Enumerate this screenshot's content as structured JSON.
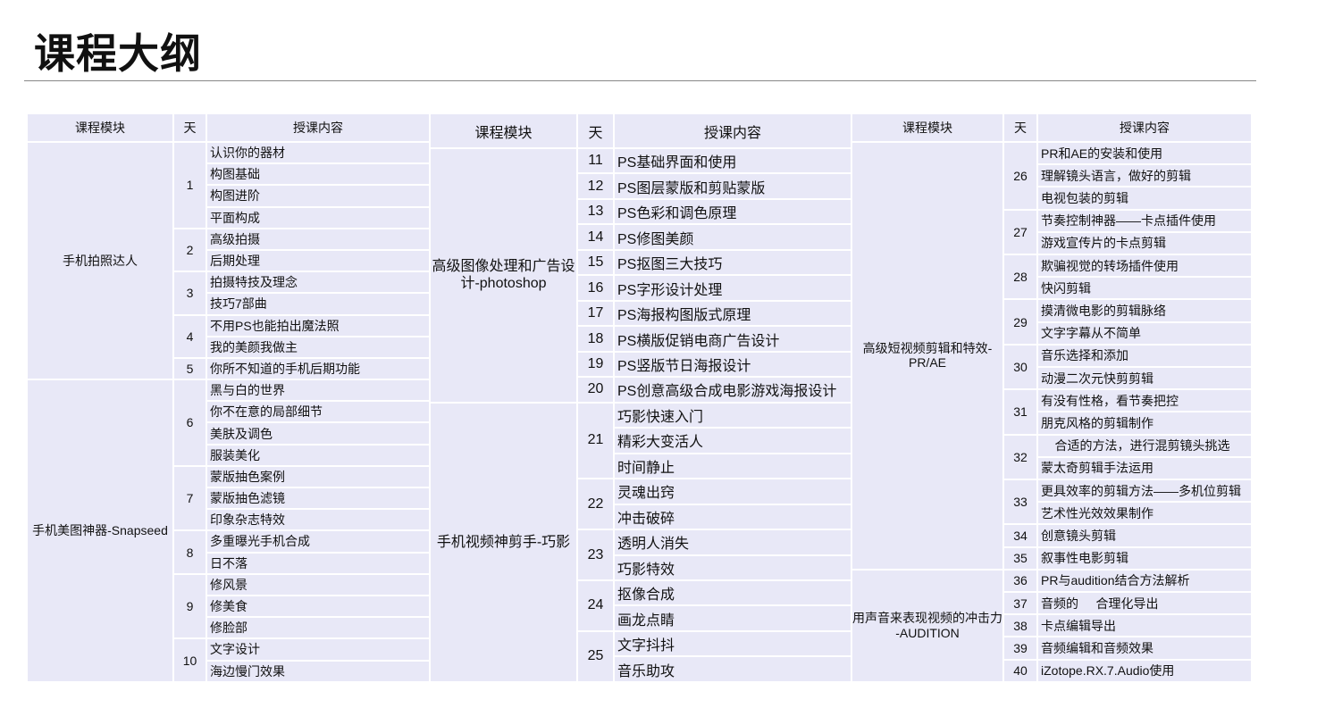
{
  "title": "课程大纲",
  "tables": [
    {
      "headers": [
        "课程模块",
        "天",
        "授课内容"
      ],
      "modules": [
        {
          "name": "手机拍照达人",
          "days": [
            {
              "day": "1",
              "items": [
                "认识你的器材",
                "构图基础",
                "构图进阶",
                "平面构成"
              ]
            },
            {
              "day": "2",
              "items": [
                "高级拍摄",
                "后期处理"
              ]
            },
            {
              "day": "3",
              "items": [
                "拍摄特技及理念",
                "技巧7部曲"
              ]
            },
            {
              "day": "4",
              "items": [
                "不用PS也能拍出魔法照",
                "我的美颜我做主"
              ]
            },
            {
              "day": "5",
              "items": [
                "你所不知道的手机后期功能"
              ]
            }
          ]
        },
        {
          "name": "手机美图神器-Snapseed",
          "days": [
            {
              "day": "6",
              "items": [
                "黑与白的世界",
                "你不在意的局部细节",
                "美肤及调色",
                "服装美化"
              ]
            },
            {
              "day": "7",
              "items": [
                "蒙版抽色案例",
                "蒙版抽色滤镜",
                "印象杂志特效"
              ]
            },
            {
              "day": "8",
              "items": [
                "多重曝光手机合成",
                "日不落"
              ]
            },
            {
              "day": "9",
              "items": [
                "修风景",
                "修美食",
                "修脸部"
              ]
            },
            {
              "day": "10",
              "items": [
                "文字设计",
                "海边慢门效果"
              ]
            }
          ]
        }
      ]
    },
    {
      "headers": [
        "课程模块",
        "天",
        "授课内容"
      ],
      "modules": [
        {
          "name": "高级图像处理和广告设计-photoshop",
          "days": [
            {
              "day": "11",
              "items": [
                "PS基础界面和使用"
              ]
            },
            {
              "day": "12",
              "items": [
                "PS图层蒙版和剪贴蒙版"
              ]
            },
            {
              "day": "13",
              "items": [
                "PS色彩和调色原理"
              ]
            },
            {
              "day": "14",
              "items": [
                "PS修图美颜"
              ]
            },
            {
              "day": "15",
              "items": [
                "PS抠图三大技巧"
              ]
            },
            {
              "day": "16",
              "items": [
                "PS字形设计处理"
              ]
            },
            {
              "day": "17",
              "items": [
                "PS海报构图版式原理"
              ]
            },
            {
              "day": "18",
              "items": [
                "PS横版促销电商广告设计"
              ]
            },
            {
              "day": "19",
              "items": [
                "PS竖版节日海报设计"
              ]
            },
            {
              "day": "20",
              "items": [
                "PS创意高级合成电影游戏海报设计"
              ]
            }
          ]
        },
        {
          "name": "手机视频神剪手-巧影",
          "days": [
            {
              "day": "21",
              "items": [
                "巧影快速入门",
                "精彩大变活人",
                "时间静止"
              ]
            },
            {
              "day": "22",
              "items": [
                "灵魂出窍",
                "冲击破碎"
              ]
            },
            {
              "day": "23",
              "items": [
                "透明人消失",
                "巧影特效"
              ]
            },
            {
              "day": "24",
              "items": [
                "抠像合成",
                "画龙点睛"
              ]
            },
            {
              "day": "25",
              "items": [
                "文字抖抖",
                "音乐助攻"
              ]
            }
          ]
        }
      ]
    },
    {
      "headers": [
        "课程模块",
        "天",
        "授课内容"
      ],
      "modules": [
        {
          "name": "高级短视频剪辑和特效-PR/AE",
          "days": [
            {
              "day": "26",
              "items": [
                "PR和AE的安装和使用",
                "理解镜头语言，做好的剪辑",
                "电视包装的剪辑"
              ]
            },
            {
              "day": "27",
              "items": [
                "节奏控制神器——卡点插件使用",
                "游戏宣传片的卡点剪辑"
              ]
            },
            {
              "day": "28",
              "items": [
                "欺骗视觉的转场插件使用",
                "快闪剪辑"
              ]
            },
            {
              "day": "29",
              "items": [
                "摸清微电影的剪辑脉络",
                "文字字幕从不简单"
              ]
            },
            {
              "day": "30",
              "items": [
                "音乐选择和添加",
                "动漫二次元快剪剪辑"
              ]
            },
            {
              "day": "31",
              "items": [
                "有没有性格，看节奏把控",
                "朋克风格的剪辑制作"
              ]
            },
            {
              "day": "32",
              "items": [
                "    合适的方法，进行混剪镜头挑选",
                "蒙太奇剪辑手法运用"
              ]
            },
            {
              "day": "33",
              "items": [
                "更具效率的剪辑方法——多机位剪辑",
                "艺术性光效效果制作"
              ]
            },
            {
              "day": "34",
              "items": [
                "创意镜头剪辑"
              ]
            },
            {
              "day": "35",
              "items": [
                "叙事性电影剪辑"
              ]
            }
          ]
        },
        {
          "name": "用声音来表现视频的冲击力\n-AUDITION",
          "days": [
            {
              "day": "36",
              "items": [
                "PR与audition结合方法解析"
              ]
            },
            {
              "day": "37",
              "items": [
                "音频的     合理化导出"
              ]
            },
            {
              "day": "38",
              "items": [
                "卡点编辑导出"
              ]
            },
            {
              "day": "39",
              "items": [
                "音频编辑和音频效果"
              ]
            },
            {
              "day": "40",
              "items": [
                "iZotope.RX.7.Audio使用"
              ]
            }
          ]
        }
      ]
    }
  ]
}
